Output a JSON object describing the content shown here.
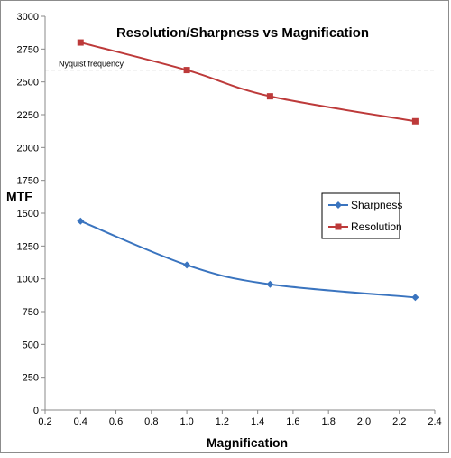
{
  "chart_data": {
    "type": "line",
    "title": "Resolution/Sharpness vs Magnification",
    "xlabel": "Magnification",
    "ylabel": "MTF",
    "xlim": [
      0.2,
      2.4
    ],
    "ylim": [
      0,
      3000
    ],
    "xticks": [
      "0.2",
      "0.4",
      "0.6",
      "0.8",
      "1.0",
      "1.2",
      "1.4",
      "1.6",
      "1.8",
      "2.0",
      "2.2",
      "2.4"
    ],
    "yticks": [
      "0",
      "250",
      "500",
      "750",
      "1000",
      "1250",
      "1500",
      "1750",
      "2000",
      "2250",
      "2500",
      "2750",
      "3000"
    ],
    "grid": false,
    "legend_position": "right-middle",
    "series": [
      {
        "name": "Sharpness",
        "color": "#3a74bf",
        "marker": "diamond",
        "x": [
          0.4,
          1.0,
          1.47,
          2.29
        ],
        "y": [
          1440,
          1105,
          958,
          858
        ]
      },
      {
        "name": "Resolution",
        "color": "#bd3a3a",
        "marker": "square",
        "x": [
          0.4,
          1.0,
          1.47,
          2.29
        ],
        "y": [
          2800,
          2590,
          2390,
          2200
        ]
      }
    ],
    "annotations": [
      {
        "label": "Nyquist frequency",
        "y": 2590,
        "style": "dashed",
        "color": "#a0a0a0"
      }
    ]
  }
}
